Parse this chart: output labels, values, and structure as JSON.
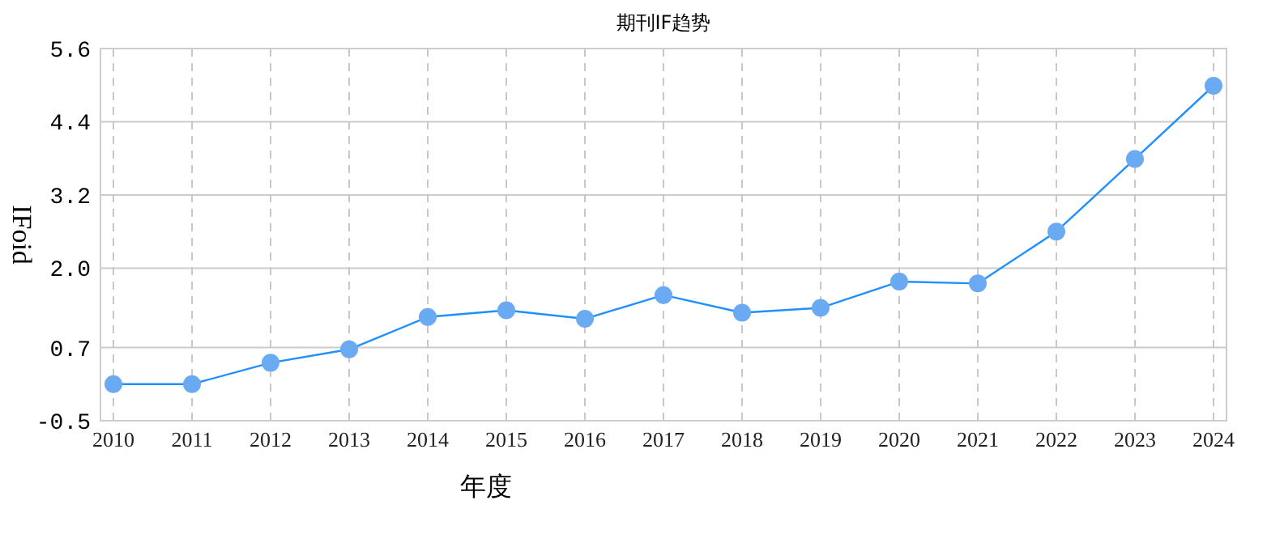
{
  "chart_data": {
    "type": "line",
    "title": "期刊IF趋势",
    "xlabel": "年度",
    "ylabel": "IFoid",
    "categories": [
      "2010",
      "2011",
      "2012",
      "2013",
      "2014",
      "2015",
      "2016",
      "2017",
      "2018",
      "2019",
      "2020",
      "2021",
      "2022",
      "2023",
      "2024"
    ],
    "series": [
      {
        "color": "#1e90ff",
        "values": [
          0.1,
          0.1,
          0.45,
          0.67,
          1.2,
          1.31,
          1.17,
          1.56,
          1.27,
          1.35,
          1.78,
          1.75,
          2.6,
          3.79,
          4.99
        ]
      }
    ],
    "ylim": [
      -0.5,
      5.6
    ],
    "yticks": [
      -0.5,
      0.7,
      {
        "value": 2,
        "label": "2.0"
      },
      3.2,
      4.4,
      5.6
    ],
    "grid": true,
    "marker": "circle",
    "line_style": "solid"
  }
}
